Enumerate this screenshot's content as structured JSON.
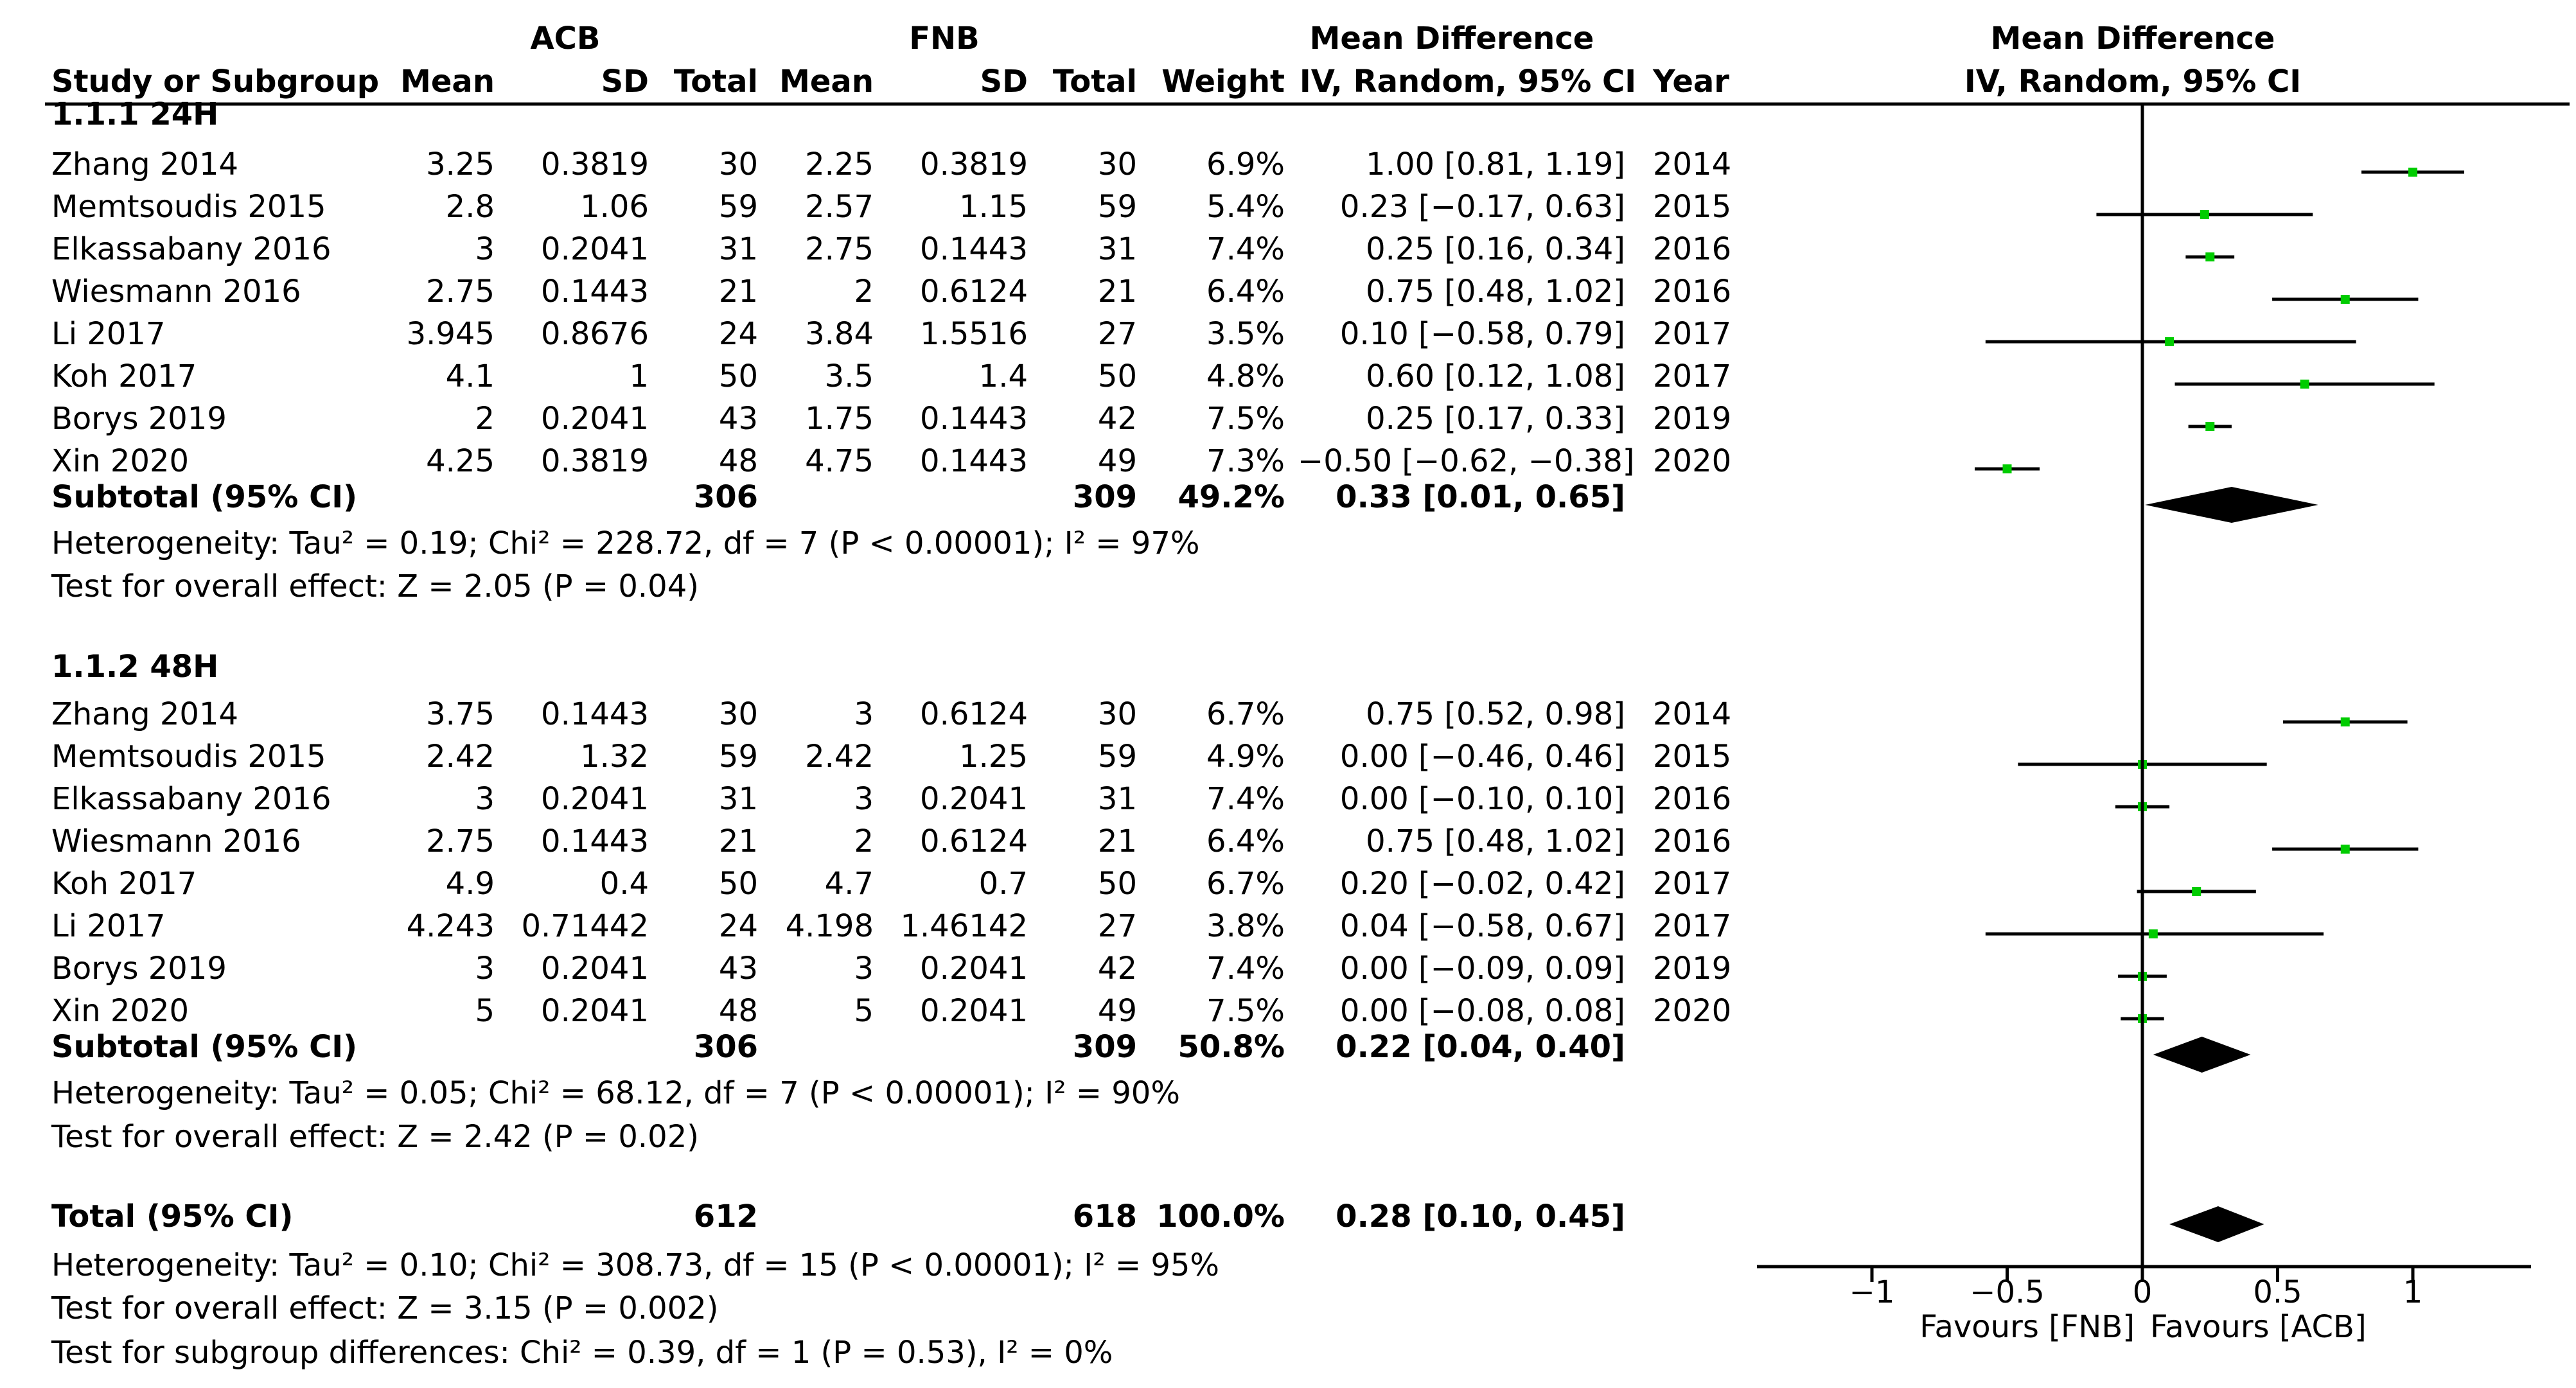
{
  "header": {
    "group1_title": "ACB",
    "group2_title": "FNB",
    "md_title": "Mean Difference",
    "md_subtitle": "IV, Random, 95% CI",
    "plot_title": "Mean Difference",
    "plot_subtitle": "IV, Random, 95% CI",
    "col_study": "Study or Subgroup",
    "col_mean1": "Mean",
    "col_sd1": "SD",
    "col_total1": "Total",
    "col_mean2": "Mean",
    "col_sd2": "SD",
    "col_total2": "Total",
    "col_weight": "Weight",
    "col_ci": "IV, Random, 95% CI",
    "col_year": "Year"
  },
  "colors": {
    "point": "#00cc00",
    "line": "#000000"
  },
  "chart_data": {
    "type": "forest",
    "xlim": [
      -1.25,
      1.25
    ],
    "ticks": [
      -1,
      -0.5,
      0,
      0.5,
      1
    ],
    "tick_labels": [
      "−1",
      "−0.5",
      "0",
      "0.5",
      "1"
    ],
    "favours_left": "Favours [FNB]",
    "favours_right": "Favours [ACB]",
    "subgroups": [
      {
        "title": "1.1.1 24H",
        "studies": [
          {
            "study": "Zhang 2014",
            "mean1": "3.25",
            "sd1": "0.3819",
            "n1": "30",
            "mean2": "2.25",
            "sd2": "0.3819",
            "n2": "30",
            "weight": "6.9%",
            "ci_text": "1.00 [0.81, 1.19]",
            "year": "2014",
            "md": 1.0,
            "lo": 0.81,
            "hi": 1.19
          },
          {
            "study": "Memtsoudis 2015",
            "mean1": "2.8",
            "sd1": "1.06",
            "n1": "59",
            "mean2": "2.57",
            "sd2": "1.15",
            "n2": "59",
            "weight": "5.4%",
            "ci_text": "0.23 [−0.17, 0.63]",
            "year": "2015",
            "md": 0.23,
            "lo": -0.17,
            "hi": 0.63
          },
          {
            "study": "Elkassabany 2016",
            "mean1": "3",
            "sd1": "0.2041",
            "n1": "31",
            "mean2": "2.75",
            "sd2": "0.1443",
            "n2": "31",
            "weight": "7.4%",
            "ci_text": "0.25 [0.16, 0.34]",
            "year": "2016",
            "md": 0.25,
            "lo": 0.16,
            "hi": 0.34
          },
          {
            "study": "Wiesmann 2016",
            "mean1": "2.75",
            "sd1": "0.1443",
            "n1": "21",
            "mean2": "2",
            "sd2": "0.6124",
            "n2": "21",
            "weight": "6.4%",
            "ci_text": "0.75 [0.48, 1.02]",
            "year": "2016",
            "md": 0.75,
            "lo": 0.48,
            "hi": 1.02
          },
          {
            "study": "Li 2017",
            "mean1": "3.945",
            "sd1": "0.8676",
            "n1": "24",
            "mean2": "3.84",
            "sd2": "1.5516",
            "n2": "27",
            "weight": "3.5%",
            "ci_text": "0.10 [−0.58, 0.79]",
            "year": "2017",
            "md": 0.1,
            "lo": -0.58,
            "hi": 0.79
          },
          {
            "study": "Koh 2017",
            "mean1": "4.1",
            "sd1": "1",
            "n1": "50",
            "mean2": "3.5",
            "sd2": "1.4",
            "n2": "50",
            "weight": "4.8%",
            "ci_text": "0.60 [0.12, 1.08]",
            "year": "2017",
            "md": 0.6,
            "lo": 0.12,
            "hi": 1.08
          },
          {
            "study": "Borys 2019",
            "mean1": "2",
            "sd1": "0.2041",
            "n1": "43",
            "mean2": "1.75",
            "sd2": "0.1443",
            "n2": "42",
            "weight": "7.5%",
            "ci_text": "0.25 [0.17, 0.33]",
            "year": "2019",
            "md": 0.25,
            "lo": 0.17,
            "hi": 0.33
          },
          {
            "study": "Xin 2020",
            "mean1": "4.25",
            "sd1": "0.3819",
            "n1": "48",
            "mean2": "4.75",
            "sd2": "0.1443",
            "n2": "49",
            "weight": "7.3%",
            "ci_text": "−0.50 [−0.62, −0.38]",
            "year": "2020",
            "md": -0.5,
            "lo": -0.62,
            "hi": -0.38
          }
        ],
        "subtotal": {
          "label": "Subtotal (95% CI)",
          "n1": "306",
          "n2": "309",
          "weight": "49.2%",
          "ci_text": "0.33 [0.01, 0.65]",
          "md": 0.33,
          "lo": 0.01,
          "hi": 0.65
        },
        "heterogeneity": "Heterogeneity: Tau² = 0.19; Chi² = 228.72, df = 7 (P < 0.00001); I² = 97%",
        "overall": "Test for overall effect: Z = 2.05 (P = 0.04)"
      },
      {
        "title": "1.1.2 48H",
        "studies": [
          {
            "study": "Zhang 2014",
            "mean1": "3.75",
            "sd1": "0.1443",
            "n1": "30",
            "mean2": "3",
            "sd2": "0.6124",
            "n2": "30",
            "weight": "6.7%",
            "ci_text": "0.75 [0.52, 0.98]",
            "year": "2014",
            "md": 0.75,
            "lo": 0.52,
            "hi": 0.98
          },
          {
            "study": "Memtsoudis 2015",
            "mean1": "2.42",
            "sd1": "1.32",
            "n1": "59",
            "mean2": "2.42",
            "sd2": "1.25",
            "n2": "59",
            "weight": "4.9%",
            "ci_text": "0.00 [−0.46, 0.46]",
            "year": "2015",
            "md": 0.0,
            "lo": -0.46,
            "hi": 0.46
          },
          {
            "study": "Elkassabany 2016",
            "mean1": "3",
            "sd1": "0.2041",
            "n1": "31",
            "mean2": "3",
            "sd2": "0.2041",
            "n2": "31",
            "weight": "7.4%",
            "ci_text": "0.00 [−0.10, 0.10]",
            "year": "2016",
            "md": 0.0,
            "lo": -0.1,
            "hi": 0.1
          },
          {
            "study": "Wiesmann 2016",
            "mean1": "2.75",
            "sd1": "0.1443",
            "n1": "21",
            "mean2": "2",
            "sd2": "0.6124",
            "n2": "21",
            "weight": "6.4%",
            "ci_text": "0.75 [0.48, 1.02]",
            "year": "2016",
            "md": 0.75,
            "lo": 0.48,
            "hi": 1.02
          },
          {
            "study": "Koh 2017",
            "mean1": "4.9",
            "sd1": "0.4",
            "n1": "50",
            "mean2": "4.7",
            "sd2": "0.7",
            "n2": "50",
            "weight": "6.7%",
            "ci_text": "0.20 [−0.02, 0.42]",
            "year": "2017",
            "md": 0.2,
            "lo": -0.02,
            "hi": 0.42
          },
          {
            "study": "Li 2017",
            "mean1": "4.243",
            "sd1": "0.71442",
            "n1": "24",
            "mean2": "4.198",
            "sd2": "1.46142",
            "n2": "27",
            "weight": "3.8%",
            "ci_text": "0.04 [−0.58, 0.67]",
            "year": "2017",
            "md": 0.04,
            "lo": -0.58,
            "hi": 0.67
          },
          {
            "study": "Borys 2019",
            "mean1": "3",
            "sd1": "0.2041",
            "n1": "43",
            "mean2": "3",
            "sd2": "0.2041",
            "n2": "42",
            "weight": "7.4%",
            "ci_text": "0.00 [−0.09, 0.09]",
            "year": "2019",
            "md": 0.0,
            "lo": -0.09,
            "hi": 0.09
          },
          {
            "study": "Xin 2020",
            "mean1": "5",
            "sd1": "0.2041",
            "n1": "48",
            "mean2": "5",
            "sd2": "0.2041",
            "n2": "49",
            "weight": "7.5%",
            "ci_text": "0.00 [−0.08, 0.08]",
            "year": "2020",
            "md": 0.0,
            "lo": -0.08,
            "hi": 0.08
          }
        ],
        "subtotal": {
          "label": "Subtotal (95% CI)",
          "n1": "306",
          "n2": "309",
          "weight": "50.8%",
          "ci_text": "0.22 [0.04, 0.40]",
          "md": 0.22,
          "lo": 0.04,
          "hi": 0.4
        },
        "heterogeneity": "Heterogeneity: Tau² = 0.05; Chi² = 68.12, df = 7 (P < 0.00001); I² = 90%",
        "overall": "Test for overall effect: Z = 2.42 (P = 0.02)"
      }
    ],
    "total": {
      "label": "Total (95% CI)",
      "n1": "612",
      "n2": "618",
      "weight": "100.0%",
      "ci_text": "0.28 [0.10, 0.45]",
      "md": 0.28,
      "lo": 0.1,
      "hi": 0.45,
      "heterogeneity": "Heterogeneity: Tau² = 0.10; Chi² = 308.73, df = 15 (P < 0.00001); I² = 95%",
      "overall": "Test for overall effect: Z = 3.15 (P = 0.002)",
      "subgroup_diff": "Test for subgroup differences: Chi² = 0.39, df = 1 (P = 0.53), I² = 0%"
    }
  }
}
